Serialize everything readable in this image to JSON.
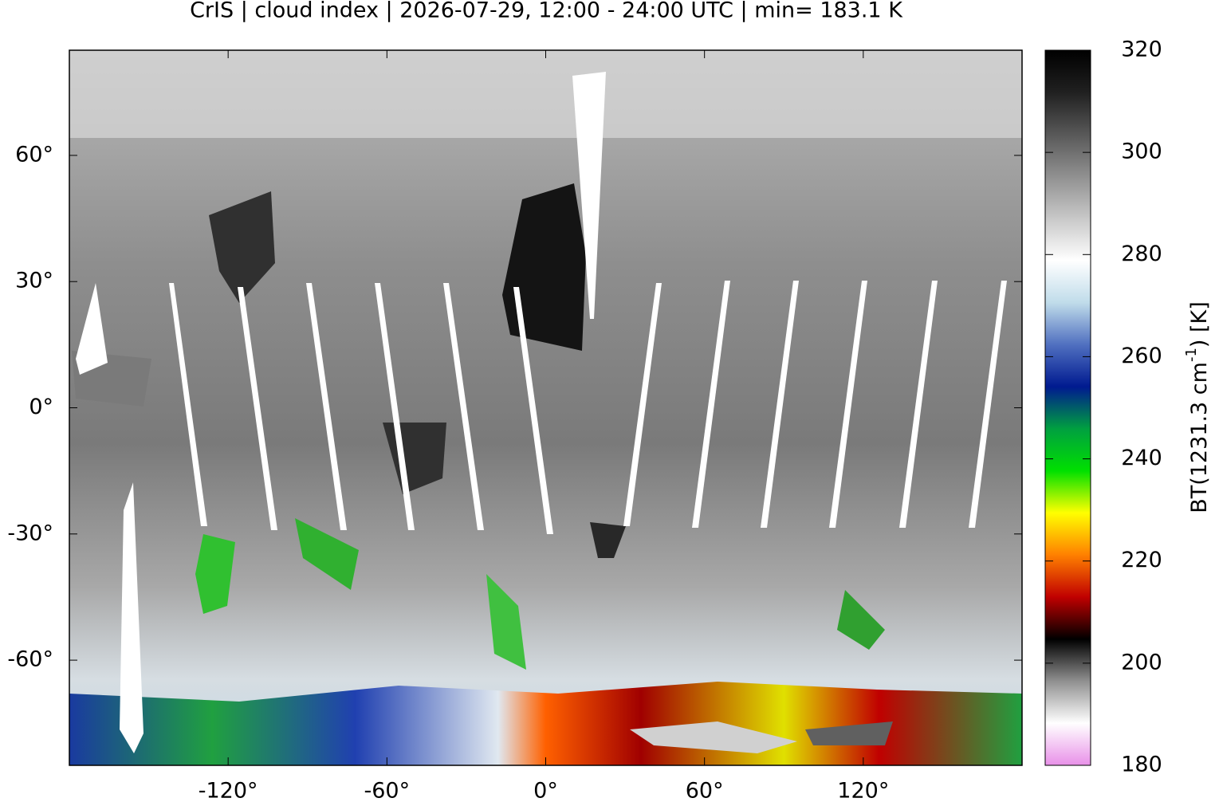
{
  "chart_data": {
    "type": "map",
    "title": "CrIS | cloud index | 2026-07-29, 12:00 - 24:00 UTC | min= 183.1 K",
    "xlim": [
      -180,
      180
    ],
    "ylim": [
      -85,
      85
    ],
    "xticks": [
      {
        "value": -120,
        "label": "-120°"
      },
      {
        "value": -60,
        "label": "-60°"
      },
      {
        "value": 0,
        "label": "0°"
      },
      {
        "value": 60,
        "label": "60°"
      },
      {
        "value": 120,
        "label": "120°"
      }
    ],
    "yticks": [
      {
        "value": 60,
        "label": "60°"
      },
      {
        "value": 30,
        "label": "30°"
      },
      {
        "value": 0,
        "label": "0°"
      },
      {
        "value": -30,
        "label": "-30°"
      },
      {
        "value": -60,
        "label": "-60°"
      }
    ],
    "colorbar": {
      "label": [
        "BT(1231.3 cm",
        "-1",
        ") [K]"
      ],
      "clim": [
        180,
        320
      ],
      "ticks": [
        180,
        200,
        220,
        240,
        260,
        280,
        300,
        320
      ],
      "colors": [
        "#e890e8",
        "#ffffff",
        "#909090",
        "#000000",
        "#c00000",
        "#ff8000",
        "#ffff00",
        "#00e000",
        "#00a040",
        "#001a90",
        "#5070c0",
        "#c0dcea",
        "#ffffff",
        "#c8c8c8",
        "#909090",
        "#585858",
        "#202020",
        "#000000"
      ]
    }
  }
}
